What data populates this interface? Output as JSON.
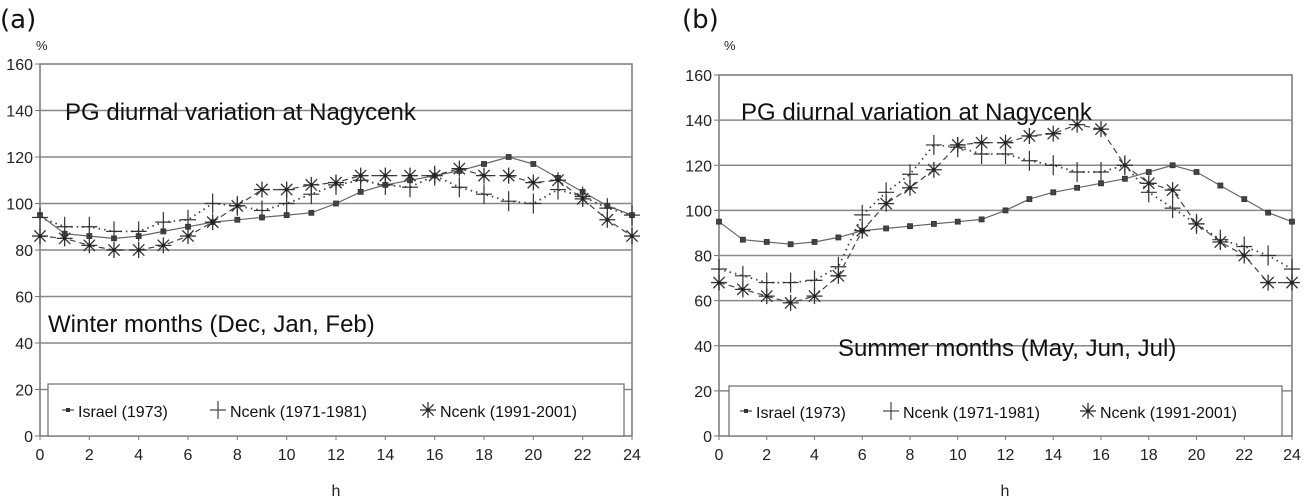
{
  "chart_data": [
    {
      "type": "line",
      "panel_label": "(a)",
      "title": "PG diurnal variation at Nagycenk",
      "subtitle": "Winter months (Dec, Jan, Feb)",
      "xlabel": "h",
      "ylabel": "%",
      "xlim": [
        0,
        24
      ],
      "ylim": [
        0,
        160
      ],
      "x_ticks": [
        "0",
        "2",
        "4",
        "6",
        "8",
        "10",
        "12",
        "14",
        "16",
        "18",
        "20",
        "22",
        "24"
      ],
      "y_ticks": [
        "0",
        "20",
        "40",
        "60",
        "80",
        "100",
        "120",
        "140",
        "160"
      ],
      "grid": "horizontal",
      "legend_position": "bottom",
      "x": [
        0,
        1,
        2,
        3,
        4,
        5,
        6,
        7,
        8,
        9,
        10,
        11,
        12,
        13,
        14,
        15,
        16,
        17,
        18,
        19,
        20,
        21,
        22,
        23,
        24
      ],
      "series": [
        {
          "name": "Israel (1973)",
          "marker": "square",
          "line": "solid",
          "values": [
            95,
            87,
            86,
            85,
            86,
            88,
            90,
            92,
            93,
            94,
            95,
            96,
            100,
            105,
            108,
            110,
            112,
            114,
            117,
            120,
            117,
            111,
            105,
            99,
            95
          ]
        },
        {
          "name": "Ncenk (1971-1981)",
          "marker": "plus",
          "line": "dotted",
          "values": [
            94,
            90,
            90,
            88,
            88,
            92,
            93,
            100,
            99,
            97,
            100,
            104,
            108,
            110,
            108,
            107,
            112,
            107,
            104,
            101,
            100,
            106,
            103,
            98,
            95
          ]
        },
        {
          "name": "Ncenk (1991-2001)",
          "marker": "asterisk",
          "line": "dashed",
          "values": [
            86,
            85,
            82,
            80,
            80,
            82,
            86,
            92,
            99,
            106,
            106,
            108,
            109,
            112,
            112,
            112,
            112,
            115,
            112,
            112,
            109,
            110,
            102,
            93,
            86
          ]
        }
      ]
    },
    {
      "type": "line",
      "panel_label": "(b)",
      "title": "PG diurnal variation at Nagycenk",
      "subtitle": "Summer months (May, Jun, Jul)",
      "xlabel": "h",
      "ylabel": "%",
      "xlim": [
        0,
        24
      ],
      "ylim": [
        0,
        160
      ],
      "x_ticks": [
        "0",
        "2",
        "4",
        "6",
        "8",
        "10",
        "12",
        "14",
        "16",
        "18",
        "20",
        "22",
        "24"
      ],
      "y_ticks": [
        "0",
        "20",
        "40",
        "60",
        "80",
        "100",
        "120",
        "140",
        "160"
      ],
      "grid": "horizontal",
      "legend_position": "bottom",
      "x": [
        0,
        1,
        2,
        3,
        4,
        5,
        6,
        7,
        8,
        9,
        10,
        11,
        12,
        13,
        14,
        15,
        16,
        17,
        18,
        19,
        20,
        21,
        22,
        23,
        24
      ],
      "series": [
        {
          "name": "Israel (1973)",
          "marker": "square",
          "line": "solid",
          "values": [
            95,
            87,
            86,
            85,
            86,
            88,
            91,
            92,
            93,
            94,
            95,
            96,
            100,
            105,
            108,
            110,
            112,
            114,
            117,
            120,
            117,
            111,
            105,
            99,
            95
          ]
        },
        {
          "name": "Ncenk (1971-1981)",
          "marker": "plus",
          "line": "dotted",
          "values": [
            74,
            71,
            68,
            68,
            69,
            75,
            98,
            108,
            116,
            129,
            128,
            125,
            125,
            122,
            120,
            117,
            117,
            120,
            108,
            101,
            94,
            87,
            84,
            80,
            74
          ]
        },
        {
          "name": "Ncenk (1991-2001)",
          "marker": "asterisk",
          "line": "dashed",
          "values": [
            68,
            65,
            62,
            59,
            62,
            71,
            91,
            103,
            110,
            118,
            129,
            130,
            130,
            133,
            134,
            138,
            136,
            120,
            112,
            109,
            94,
            86,
            80,
            68,
            68
          ]
        }
      ]
    }
  ],
  "colors": {
    "axis": "#777777",
    "grid": "#888888",
    "series": "#333333"
  }
}
